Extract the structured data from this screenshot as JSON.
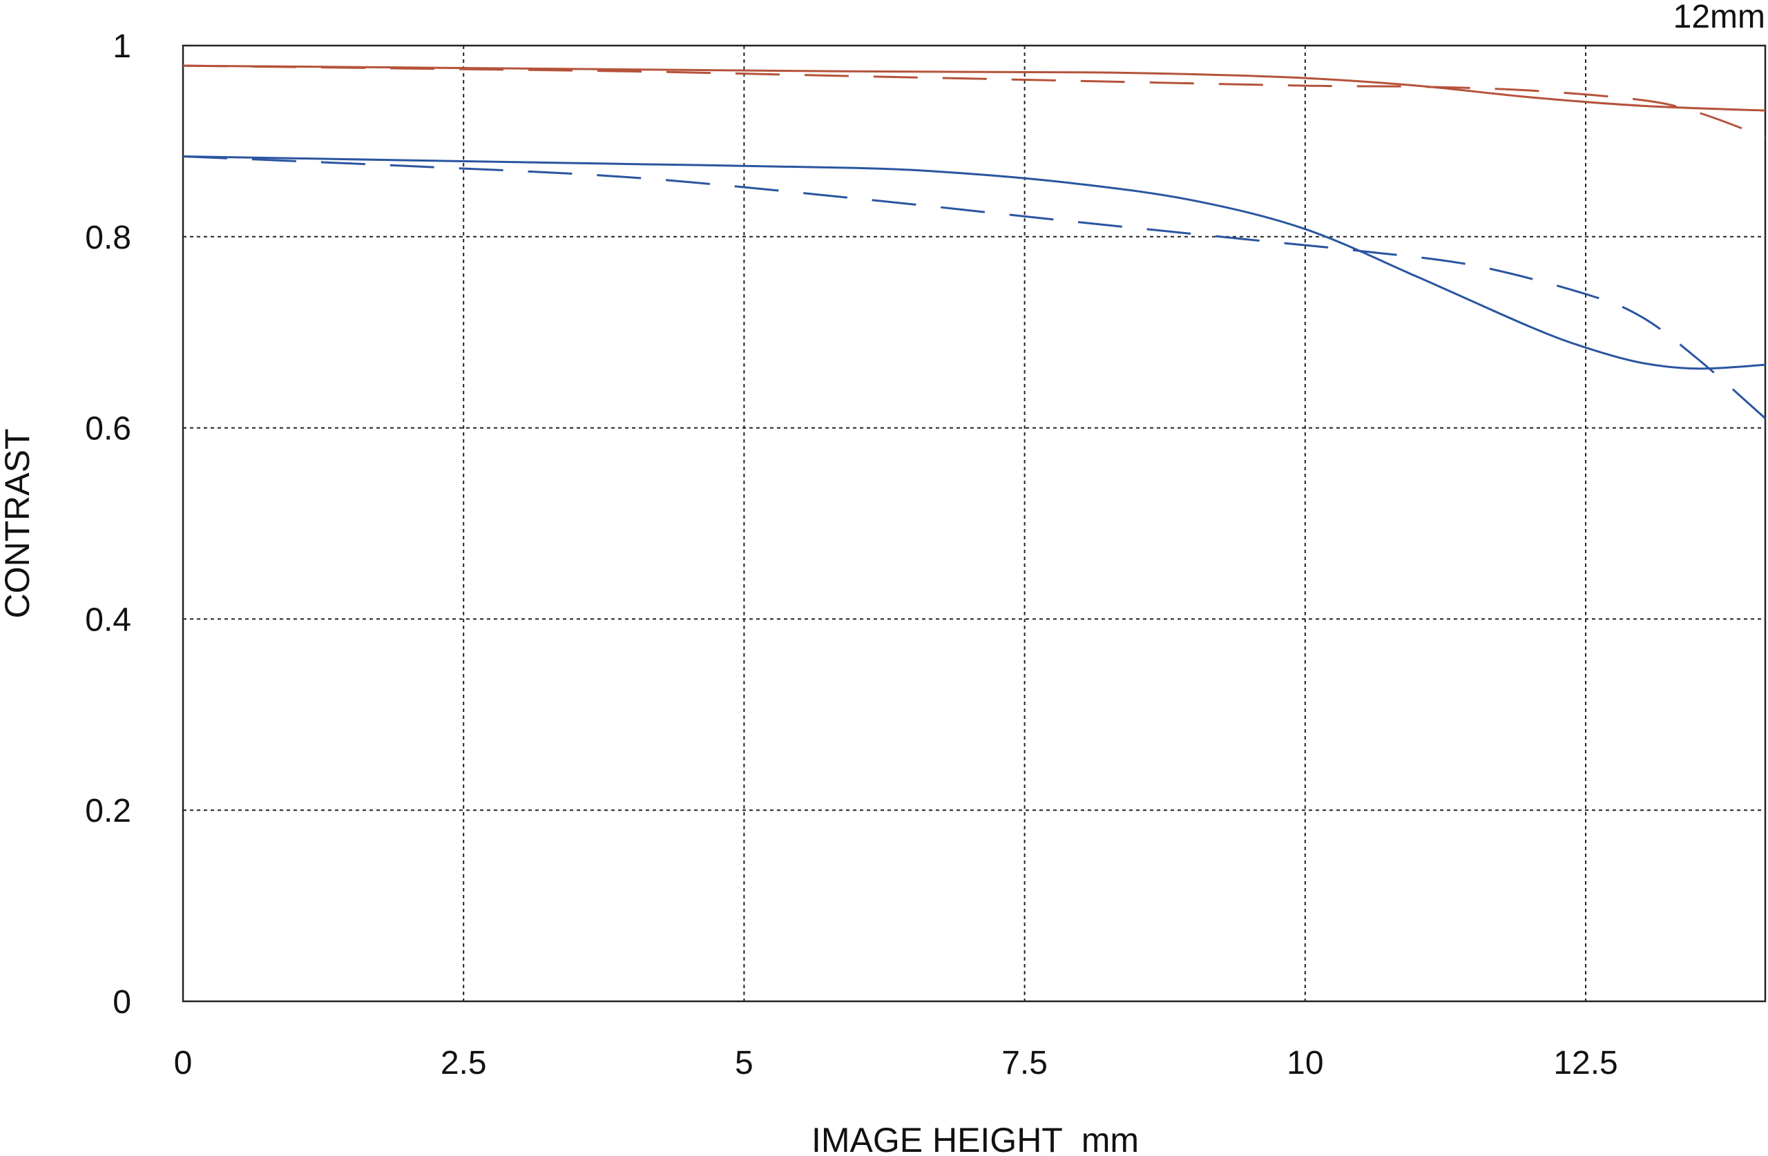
{
  "chart_data": {
    "type": "line",
    "title": "",
    "corner_label": "12mm",
    "xlabel": "IMAGE HEIGHT  mm",
    "ylabel": "CONTRAST",
    "xlim": [
      0,
      14.1
    ],
    "ylim": [
      0,
      1
    ],
    "grid": true,
    "xticks": [
      0,
      2.5,
      5,
      7.5,
      10,
      12.5
    ],
    "xtick_labels": [
      "0",
      "2.5",
      "5",
      "7.5",
      "10",
      "12.5"
    ],
    "yticks": [
      0,
      0.2,
      0.4,
      0.6,
      0.8,
      1
    ],
    "ytick_labels": [
      "0",
      "0.2",
      "0.4",
      "0.6",
      "0.8",
      "1"
    ],
    "series": [
      {
        "color": "#b5533a",
        "style": "solid",
        "points": [
          [
            0,
            0.979
          ],
          [
            2,
            0.977
          ],
          [
            4,
            0.975
          ],
          [
            6,
            0.973
          ],
          [
            8,
            0.972
          ],
          [
            9,
            0.97
          ],
          [
            10,
            0.966
          ],
          [
            11,
            0.958
          ],
          [
            12,
            0.946
          ],
          [
            13,
            0.937
          ],
          [
            14.1,
            0.932
          ]
        ]
      },
      {
        "color": "#b5533a",
        "style": "dashed",
        "points": [
          [
            0,
            0.979
          ],
          [
            2,
            0.976
          ],
          [
            4,
            0.973
          ],
          [
            6,
            0.968
          ],
          [
            8,
            0.963
          ],
          [
            10,
            0.958
          ],
          [
            11,
            0.957
          ],
          [
            12,
            0.953
          ],
          [
            13,
            0.943
          ],
          [
            13.5,
            0.93
          ],
          [
            14.1,
            0.904
          ]
        ]
      },
      {
        "color": "#2a55a0",
        "style": "solid",
        "points": [
          [
            0,
            0.884
          ],
          [
            2,
            0.88
          ],
          [
            4,
            0.876
          ],
          [
            6,
            0.872
          ],
          [
            7,
            0.866
          ],
          [
            8,
            0.855
          ],
          [
            9,
            0.838
          ],
          [
            10,
            0.808
          ],
          [
            11,
            0.758
          ],
          [
            12,
            0.706
          ],
          [
            12.5,
            0.684
          ],
          [
            13,
            0.668
          ],
          [
            13.5,
            0.662
          ],
          [
            14.1,
            0.666
          ]
        ]
      },
      {
        "color": "#2a55a0",
        "style": "dashed",
        "points": [
          [
            0,
            0.884
          ],
          [
            2,
            0.874
          ],
          [
            4,
            0.862
          ],
          [
            6,
            0.84
          ],
          [
            8,
            0.815
          ],
          [
            9.5,
            0.797
          ],
          [
            10.5,
            0.785
          ],
          [
            11.5,
            0.77
          ],
          [
            12.5,
            0.74
          ],
          [
            13,
            0.716
          ],
          [
            13.5,
            0.672
          ],
          [
            14.1,
            0.61
          ]
        ]
      }
    ]
  }
}
